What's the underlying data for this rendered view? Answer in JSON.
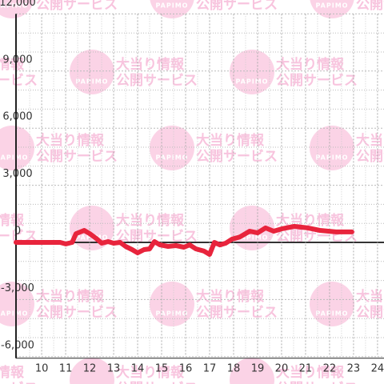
{
  "chart_data": {
    "type": "line",
    "watermark": {
      "logo": "PAPIMO",
      "lines": [
        "大当り情報",
        "公開サービス"
      ]
    },
    "xlim": [
      8.93,
      24.27
    ],
    "ylim": [
      -6000,
      12000
    ],
    "xticks": [
      10,
      11,
      12,
      13,
      14,
      15,
      16,
      17,
      18,
      19,
      20,
      21,
      22,
      23,
      24
    ],
    "yticks": [
      {
        "value": -6000,
        "label": "-6,000"
      },
      {
        "value": -3000,
        "label": "-3,000"
      },
      0,
      {
        "value": 3000,
        "label": "3,000"
      },
      {
        "value": 6000,
        "label": "6,000"
      },
      {
        "value": 9000,
        "label": "9,000"
      },
      {
        "value": 12000,
        "label": "12,000"
      }
    ],
    "minor_xticks": [
      9.5,
      10.5,
      11.5,
      12.5,
      13.5,
      14.5,
      15.5,
      16.5,
      17.5,
      18.5,
      19.5,
      20.5,
      21.5,
      22.5,
      23.5
    ],
    "minor_yticks": [
      -5000,
      -4000,
      -2000,
      -1000,
      1000,
      2000,
      4000,
      5000,
      7000,
      8000,
      10000,
      11000
    ],
    "grid": true,
    "series": [
      {
        "color": "#e8243c",
        "x": [
          8.93,
          10.77,
          11.0,
          11.27,
          11.43,
          11.77,
          12.0,
          12.27,
          12.5,
          12.77,
          13.0,
          13.27,
          13.5,
          13.77,
          14.0,
          14.27,
          14.5,
          14.7,
          14.93,
          15.27,
          15.6,
          15.93,
          16.17,
          16.43,
          16.77,
          17.0,
          17.2,
          17.43,
          17.67,
          17.93,
          18.27,
          18.67,
          19.0,
          19.33,
          19.67,
          20.0,
          20.53,
          21.1,
          21.6,
          22.27,
          22.93
        ],
        "values": [
          0,
          0,
          -80,
          0,
          460,
          630,
          460,
          210,
          -40,
          40,
          -40,
          0,
          -210,
          -380,
          -550,
          -380,
          -340,
          40,
          -130,
          -210,
          -170,
          -250,
          -130,
          -340,
          -460,
          -630,
          0,
          -130,
          -40,
          170,
          290,
          590,
          500,
          760,
          590,
          710,
          840,
          760,
          630,
          550,
          550
        ]
      }
    ]
  }
}
